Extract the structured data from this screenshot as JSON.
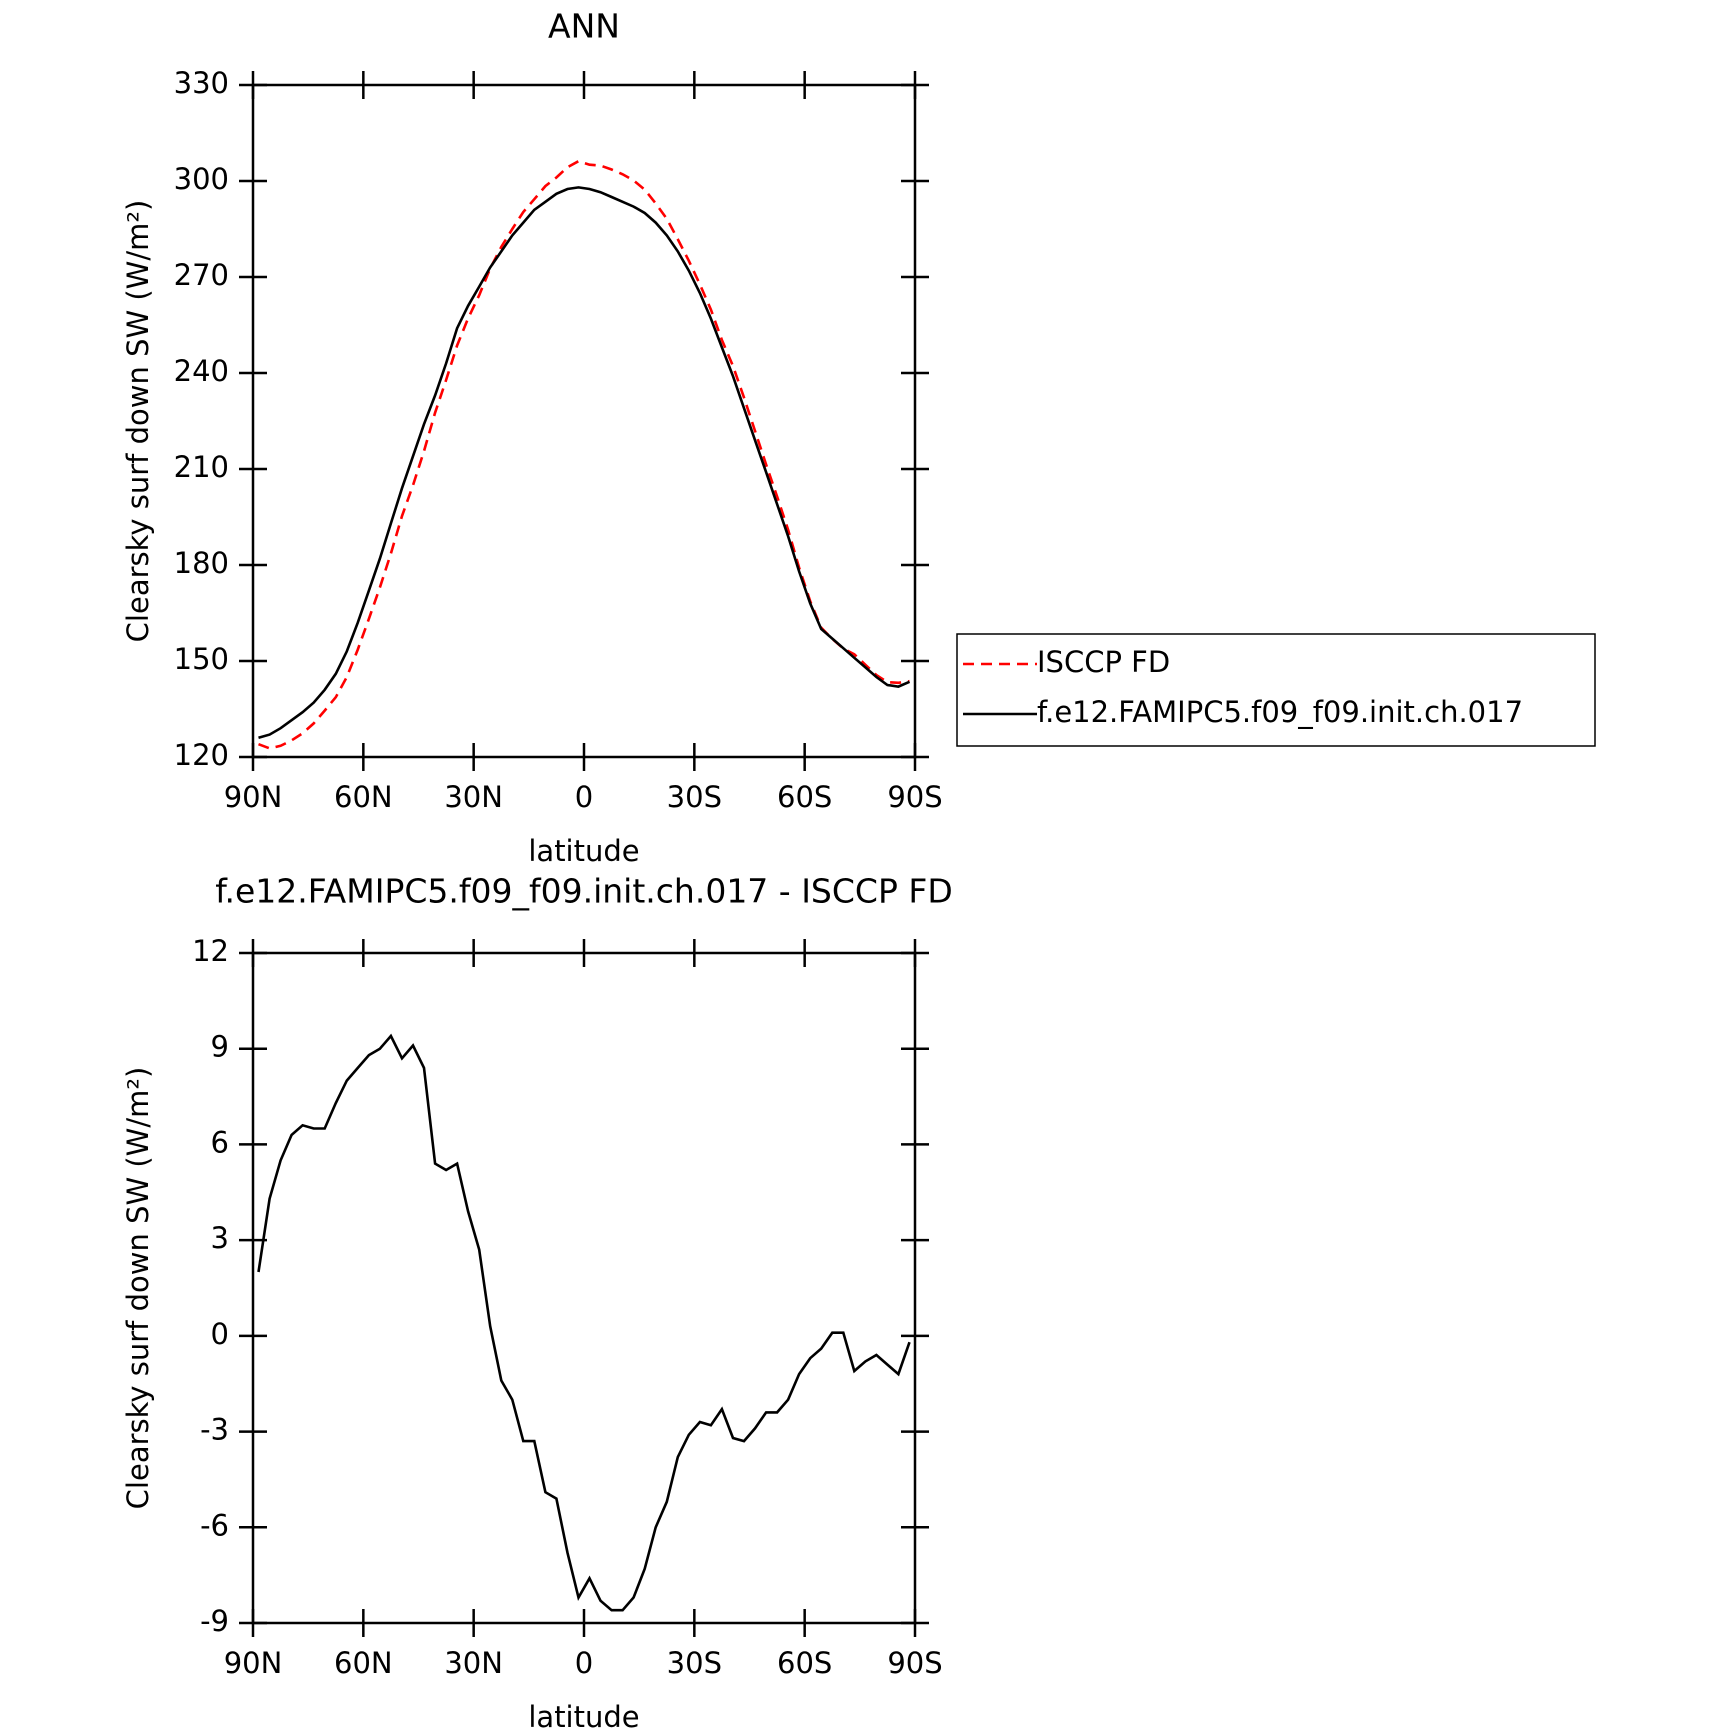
{
  "chart_data": [
    {
      "type": "line",
      "title": "ANN",
      "x_label": "latitude",
      "y_label": "Clearsky surf down SW (W/m²)",
      "x": [
        88.5,
        85.5,
        82.5,
        79.5,
        76.5,
        73.5,
        70.5,
        67.5,
        64.5,
        61.5,
        58.5,
        55.5,
        52.5,
        49.5,
        46.5,
        43.5,
        40.5,
        37.5,
        34.5,
        31.5,
        28.5,
        25.5,
        22.5,
        19.5,
        16.5,
        13.5,
        10.5,
        7.5,
        4.5,
        1.5,
        -1.5,
        -4.5,
        -7.5,
        -10.5,
        -13.5,
        -16.5,
        -19.5,
        -22.5,
        -25.5,
        -28.5,
        -31.5,
        -34.5,
        -37.5,
        -40.5,
        -43.5,
        -46.5,
        -49.5,
        -52.5,
        -55.5,
        -58.5,
        -61.5,
        -64.5,
        -67.5,
        -70.5,
        -73.5,
        -76.5,
        -79.5,
        -82.5,
        -85.5,
        -88.5
      ],
      "xlim": [
        90,
        -90
      ],
      "xticks": [
        {
          "value": 90,
          "label": "90N"
        },
        {
          "value": 60,
          "label": "60N"
        },
        {
          "value": 30,
          "label": "30N"
        },
        0,
        {
          "value": -30,
          "label": "30S"
        },
        {
          "value": -60,
          "label": "60S"
        },
        {
          "value": -90,
          "label": "90S"
        }
      ],
      "ylim": [
        120,
        330
      ],
      "yticks": [
        120,
        150,
        180,
        210,
        240,
        270,
        300,
        330
      ],
      "series": [
        {
          "name": "ISCCP FD",
          "color": "#ff0000",
          "dash": true,
          "values": [
            124,
            122.7,
            123.5,
            125.2,
            127.4,
            130.5,
            134.5,
            138.7,
            145,
            153.6,
            163.2,
            173,
            183.6,
            195.3,
            204.9,
            215.6,
            227.6,
            237.8,
            248.6,
            257.1,
            264.3,
            272.7,
            279.4,
            285,
            290.3,
            294.3,
            298.4,
            301.1,
            304.3,
            306.2,
            305.1,
            304.8,
            303.6,
            302.1,
            300.2,
            297.3,
            293,
            288.2,
            281.8,
            275.1,
            267.7,
            259.8,
            250.3,
            242.2,
            232.3,
            221.9,
            211.4,
            201.4,
            191,
            179.2,
            168.7,
            160.4,
            156.9,
            153.9,
            152.1,
            148.8,
            145.6,
            143.4,
            143.2,
            143.7
          ]
        },
        {
          "name": "f.e12.FAMIPC5.f09_f09.init.ch.017",
          "color": "#000000",
          "dash": false,
          "values": [
            126,
            127,
            129,
            131.5,
            134,
            137,
            141,
            146,
            153,
            162,
            172,
            182,
            193,
            204,
            214,
            224,
            233,
            243,
            254,
            261,
            267,
            273,
            278,
            283,
            287,
            291,
            293.5,
            296,
            297.5,
            298,
            297.5,
            296.5,
            295,
            293.5,
            292,
            290,
            287,
            283,
            278,
            272,
            265,
            257,
            248,
            239,
            229,
            219,
            209,
            199,
            189,
            178,
            168,
            160,
            157,
            154,
            151,
            148,
            145,
            142.5,
            142,
            143.5
          ]
        }
      ]
    },
    {
      "type": "line",
      "title": "f.e12.FAMIPC5.f09_f09.init.ch.017 - ISCCP FD",
      "x_label": "latitude",
      "y_label": "Clearsky surf down SW (W/m²)",
      "x": [
        88.5,
        85.5,
        82.5,
        79.5,
        76.5,
        73.5,
        70.5,
        67.5,
        64.5,
        61.5,
        58.5,
        55.5,
        52.5,
        49.5,
        46.5,
        43.5,
        40.5,
        37.5,
        34.5,
        31.5,
        28.5,
        25.5,
        22.5,
        19.5,
        16.5,
        13.5,
        10.5,
        7.5,
        4.5,
        1.5,
        -1.5,
        -4.5,
        -7.5,
        -10.5,
        -13.5,
        -16.5,
        -19.5,
        -22.5,
        -25.5,
        -28.5,
        -31.5,
        -34.5,
        -37.5,
        -40.5,
        -43.5,
        -46.5,
        -49.5,
        -52.5,
        -55.5,
        -58.5,
        -61.5,
        -64.5,
        -67.5,
        -70.5,
        -73.5,
        -76.5,
        -79.5,
        -82.5,
        -85.5,
        -88.5
      ],
      "xlim": [
        90,
        -90
      ],
      "xticks": [
        {
          "value": 90,
          "label": "90N"
        },
        {
          "value": 60,
          "label": "60N"
        },
        {
          "value": 30,
          "label": "30N"
        },
        0,
        {
          "value": -30,
          "label": "30S"
        },
        {
          "value": -60,
          "label": "60S"
        },
        {
          "value": -90,
          "label": "90S"
        }
      ],
      "ylim": [
        -9,
        12
      ],
      "yticks": [
        -9,
        -6,
        -3,
        0,
        3,
        6,
        9,
        12
      ],
      "series": [
        {
          "color": "#000000",
          "dash": false,
          "values": [
            2,
            4.3,
            5.5,
            6.3,
            6.6,
            6.5,
            6.5,
            7.3,
            8.0,
            8.4,
            8.8,
            9.0,
            9.4,
            8.7,
            9.1,
            8.4,
            5.4,
            5.2,
            5.4,
            3.9,
            2.7,
            0.3,
            -1.4,
            -2.0,
            -3.3,
            -3.3,
            -4.9,
            -5.1,
            -6.8,
            -8.2,
            -7.6,
            -8.3,
            -8.6,
            -8.6,
            -8.2,
            -7.3,
            -6.0,
            -5.2,
            -3.8,
            -3.1,
            -2.7,
            -2.8,
            -2.3,
            -3.2,
            -3.3,
            -2.9,
            -2.4,
            -2.4,
            -2.0,
            -1.2,
            -0.7,
            -0.4,
            0.1,
            0.1,
            -1.1,
            -0.8,
            -0.6,
            -0.9,
            -1.2,
            -0.2
          ]
        }
      ]
    }
  ]
}
